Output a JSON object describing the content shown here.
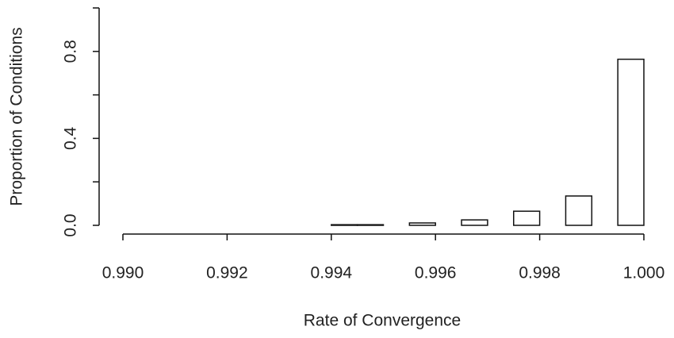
{
  "chart_data": {
    "type": "histogram",
    "x_label": "Rate of Convergence",
    "y_label": "Proportion of Conditions",
    "bins": [
      0.994,
      0.9945,
      0.995,
      0.9955,
      0.996,
      0.9965,
      0.997,
      0.9975,
      0.998,
      0.9985,
      0.999,
      0.9995,
      1.0
    ],
    "values": [
      0.003,
      0.003,
      0,
      0.011,
      0,
      0.025,
      0,
      0.065,
      0,
      0.135,
      0,
      0.764
    ],
    "color": "#ffffff",
    "xlim": [
      0.99,
      1.0
    ],
    "xticks": [
      {
        "value": 0.99,
        "label": "0.990"
      },
      {
        "value": 0.992,
        "label": "0.992"
      },
      {
        "value": 0.994,
        "label": "0.994"
      },
      {
        "value": 0.996,
        "label": "0.996"
      },
      {
        "value": 0.998,
        "label": "0.998"
      },
      {
        "value": 1.0,
        "label": "1.000"
      }
    ],
    "ylim": [
      0,
      1.0
    ],
    "yticks": [
      {
        "value": 0,
        "label": "0.0"
      },
      {
        "value": 0.2,
        "label": null
      },
      {
        "value": 0.4,
        "label": "0.4"
      },
      {
        "value": 0.6,
        "label": null
      },
      {
        "value": 0.8,
        "label": "0.8"
      },
      {
        "value": 1.0,
        "label": null
      }
    ]
  }
}
